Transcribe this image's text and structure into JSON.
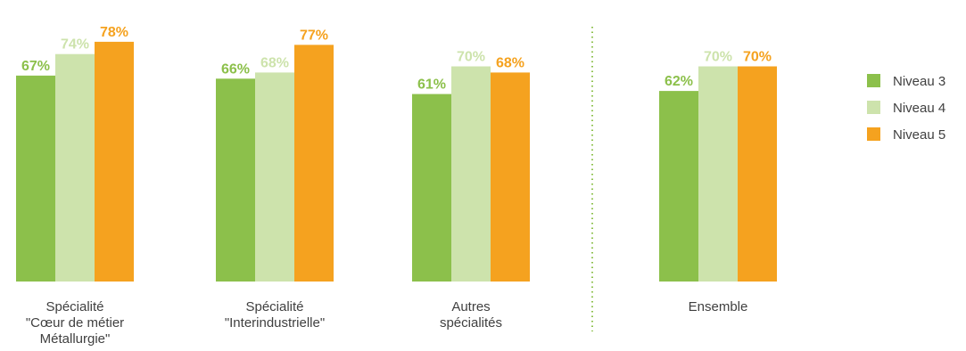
{
  "chart_data": {
    "type": "bar",
    "categories": [
      [
        "Spécialité",
        "\"Cœur de métier",
        "Métallurgie\""
      ],
      [
        "Spécialité",
        "\"Interindustrielle\""
      ],
      [
        "Autres",
        "spécialités"
      ],
      [
        "Ensemble"
      ]
    ],
    "series": [
      {
        "name": "Niveau 3",
        "values": [
          67,
          66,
          61,
          62
        ],
        "color": "#8cc04b"
      },
      {
        "name": "Niveau 4",
        "values": [
          74,
          68,
          70,
          70
        ],
        "color": "#cde3ac"
      },
      {
        "name": "Niveau 5",
        "values": [
          78,
          77,
          68,
          70
        ],
        "color": "#f5a21f"
      }
    ],
    "value_suffix": "%",
    "ylim": [
      0,
      100
    ],
    "grid": false,
    "separator_before_category": 3,
    "legend_position": "right"
  }
}
